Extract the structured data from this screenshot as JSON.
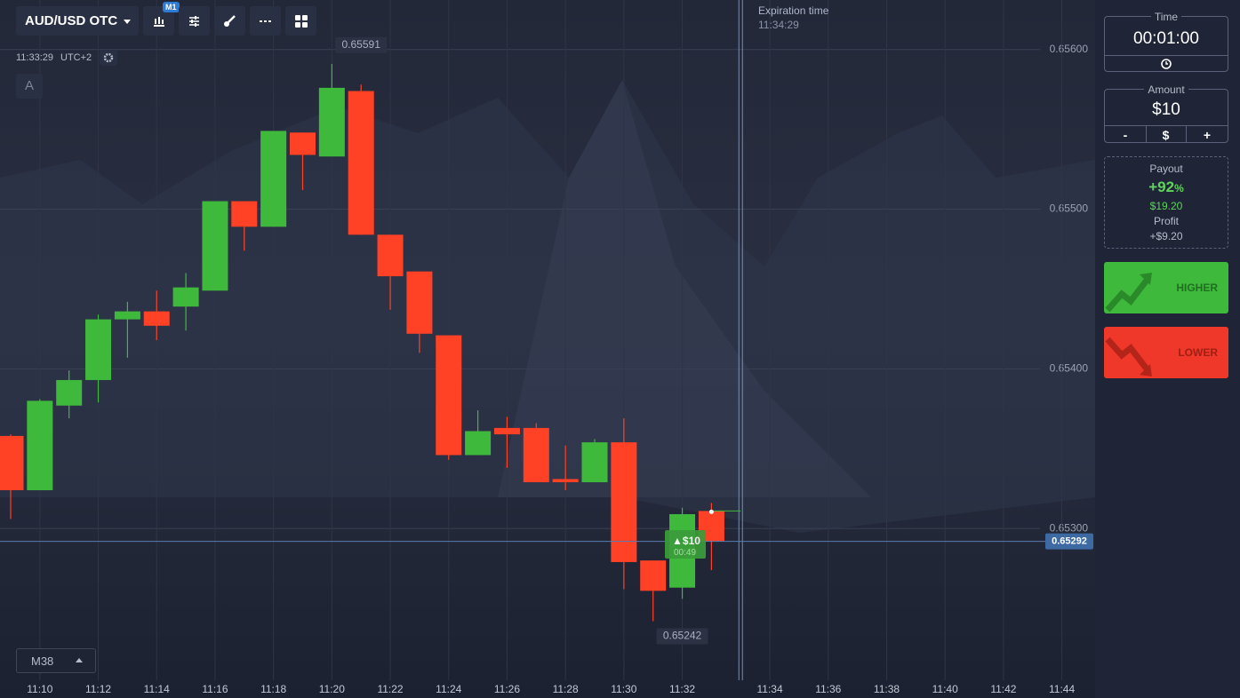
{
  "toolbar": {
    "symbol": "AUD/USD OTC",
    "timeframe": "M1",
    "clock": "11:33:29",
    "timezone": "UTC+2",
    "drawing_letter": "A",
    "indicator": "M38"
  },
  "expiration": {
    "label": "Expiration time",
    "time": "11:34:29"
  },
  "trade_marker": {
    "amount": "$10",
    "countdown": "00:49"
  },
  "sidebar": {
    "time_label": "Time",
    "time_value": "00:01:00",
    "amount_label": "Amount",
    "amount_value": "$10",
    "minus": "-",
    "currency": "$",
    "plus": "+",
    "payout_label": "Payout",
    "payout_percent": "+92",
    "percent_sign": "%",
    "payout_amount": "$19.20",
    "profit_label": "Profit",
    "profit_amount": "+$9.20",
    "higher": "HIGHER",
    "lower": "LOWER"
  },
  "chart_data": {
    "type": "candlestick",
    "categories": [
      null,
      "11:10",
      null,
      "11:12",
      null,
      "11:14",
      null,
      "11:16",
      null,
      "11:18",
      null,
      "11:20",
      null,
      "11:22",
      null,
      "11:24",
      null,
      "11:26",
      null,
      "11:28",
      null,
      "11:30",
      null,
      "11:32",
      null
    ],
    "open": [
      0.65358,
      0.65324,
      0.65377,
      0.65393,
      0.65431,
      0.65436,
      0.65439,
      0.65449,
      0.65505,
      0.65489,
      0.65548,
      0.65533,
      0.65574,
      0.65484,
      0.65461,
      0.65421,
      0.65346,
      0.65363,
      0.65363,
      0.65331,
      0.65329,
      0.65354,
      0.6528,
      0.65263,
      0.65311
    ],
    "high": [
      0.65359,
      0.65381,
      0.65399,
      0.65434,
      0.65442,
      0.65449,
      0.6546,
      0.65505,
      0.65505,
      0.65549,
      0.65548,
      0.65591,
      0.65578,
      0.65484,
      0.65461,
      0.65421,
      0.65374,
      0.6537,
      0.65366,
      0.65352,
      0.65356,
      0.65369,
      0.6528,
      0.65313,
      0.65316
    ],
    "low": [
      0.65306,
      0.65324,
      0.65369,
      0.65379,
      0.65407,
      0.65418,
      0.65424,
      0.65449,
      0.65474,
      0.65489,
      0.65512,
      0.65533,
      0.65484,
      0.65437,
      0.6541,
      0.65343,
      0.65346,
      0.65338,
      0.65329,
      0.65324,
      0.65329,
      0.65262,
      0.65242,
      0.65256,
      0.65274
    ],
    "close": [
      0.65324,
      0.6538,
      0.65393,
      0.65431,
      0.65436,
      0.65427,
      0.65451,
      0.65505,
      0.65489,
      0.65549,
      0.65534,
      0.65576,
      0.65484,
      0.65458,
      0.65422,
      0.65346,
      0.65361,
      0.65359,
      0.65329,
      0.65329,
      0.65354,
      0.65279,
      0.65261,
      0.65309,
      0.65292
    ],
    "up_color": "#3fb93c",
    "down_color": "#ff4125",
    "extra_xticks": [
      "11:34",
      "11:36",
      "11:38",
      "11:40",
      "11:42",
      "11:44"
    ],
    "ylim": [
      0.65205,
      0.65631
    ],
    "yticks": [
      {
        "value": 0.653,
        "label": "0.65300"
      },
      {
        "value": 0.654,
        "label": "0.65400"
      },
      {
        "value": 0.655,
        "label": "0.65500"
      },
      {
        "value": 0.656,
        "label": "0.65600"
      }
    ],
    "grid": true,
    "current_price": {
      "value": 0.65292,
      "label": "0.65292"
    },
    "max_label": {
      "value": 0.65591,
      "label": "0.65591"
    },
    "min_label": {
      "value": 0.65242,
      "label": "0.65242"
    }
  }
}
